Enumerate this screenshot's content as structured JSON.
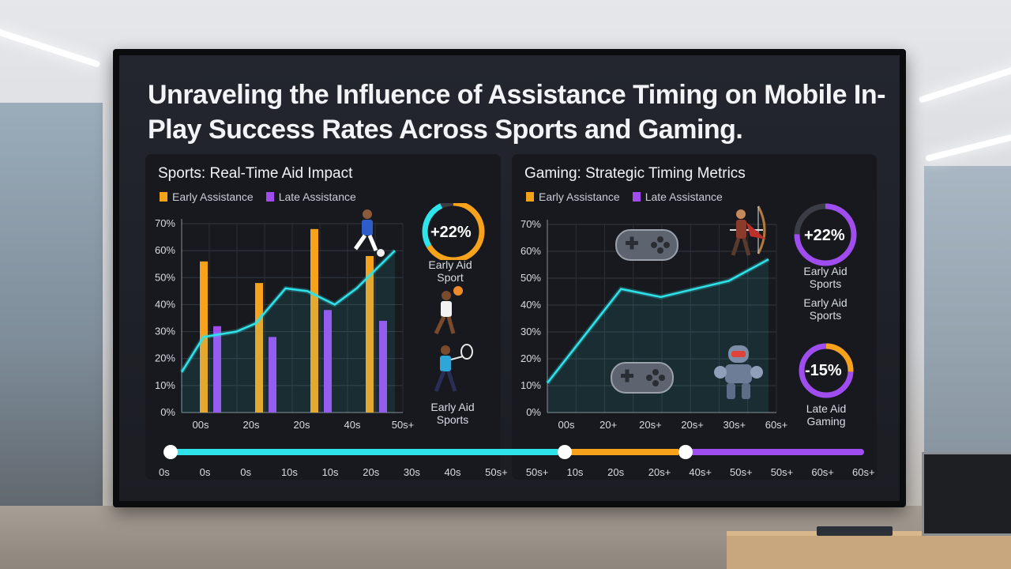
{
  "title": "Unraveling the Influence of Assistance Timing on Mobile In-Play Success Rates Across Sports and Gaming.",
  "colors": {
    "early": "#f7a21b",
    "late": "#a04df0",
    "line": "#2fe3ea"
  },
  "chart_data": [
    {
      "type": "bar",
      "title": "Sports: Real-Time Aid Impact",
      "legend": [
        "Early Assistance",
        "Late Assistance"
      ],
      "y_ticks": [
        "0%",
        "10%",
        "20%",
        "30%",
        "40%",
        "50%",
        "60%",
        "70%"
      ],
      "x_ticks": [
        "00s",
        "20s",
        "20s",
        "40s",
        "50s+"
      ],
      "ylim": [
        0,
        70
      ],
      "series": [
        {
          "name": "Early Assistance",
          "values": [
            56,
            48,
            68,
            58
          ]
        },
        {
          "name": "Late Assistance",
          "values": [
            32,
            28,
            38,
            34
          ]
        }
      ],
      "line": [
        [
          0,
          15
        ],
        [
          0.4,
          28
        ],
        [
          1.0,
          30
        ],
        [
          1.35,
          33
        ],
        [
          1.9,
          46
        ],
        [
          2.3,
          45
        ],
        [
          2.8,
          40
        ],
        [
          3.2,
          46
        ],
        [
          3.9,
          60
        ]
      ]
    },
    {
      "type": "line",
      "title": "Gaming: Strategic Timing Metrics",
      "legend": [
        "Early Assistance",
        "Late Assistance"
      ],
      "y_ticks": [
        "0%",
        "10%",
        "20%",
        "30%",
        "40%",
        "50%",
        "60%",
        "70%"
      ],
      "x_ticks": [
        "00s",
        "20+",
        "20s+",
        "20s+",
        "30s+",
        "60s+"
      ],
      "ylim": [
        0,
        70
      ],
      "line": [
        [
          0,
          11
        ],
        [
          1.3,
          46
        ],
        [
          2.0,
          43
        ],
        [
          3.2,
          49
        ],
        [
          3.9,
          57
        ]
      ]
    }
  ],
  "gauges": [
    {
      "value": "+22%",
      "label": "Early Aid Sport",
      "color": "#f7a21b"
    },
    {
      "value": "+22%",
      "label": "Early Aid Sports",
      "color": "#a04df0"
    },
    {
      "value": "-15%",
      "label": "Late Aid Gaming",
      "color": "#f7a21b"
    }
  ],
  "caption_sports": "Early Aid Sports",
  "caption_gaming_mid": "Early Aid Sports",
  "timeline_labels": [
    "0s",
    "0s",
    "0s",
    "10s",
    "10s",
    "20s",
    "30s",
    "40s",
    "50s+",
    "50s+",
    "10s",
    "20s",
    "20s+",
    "40s+",
    "50s+",
    "50s+",
    "60s+",
    "60s+"
  ]
}
